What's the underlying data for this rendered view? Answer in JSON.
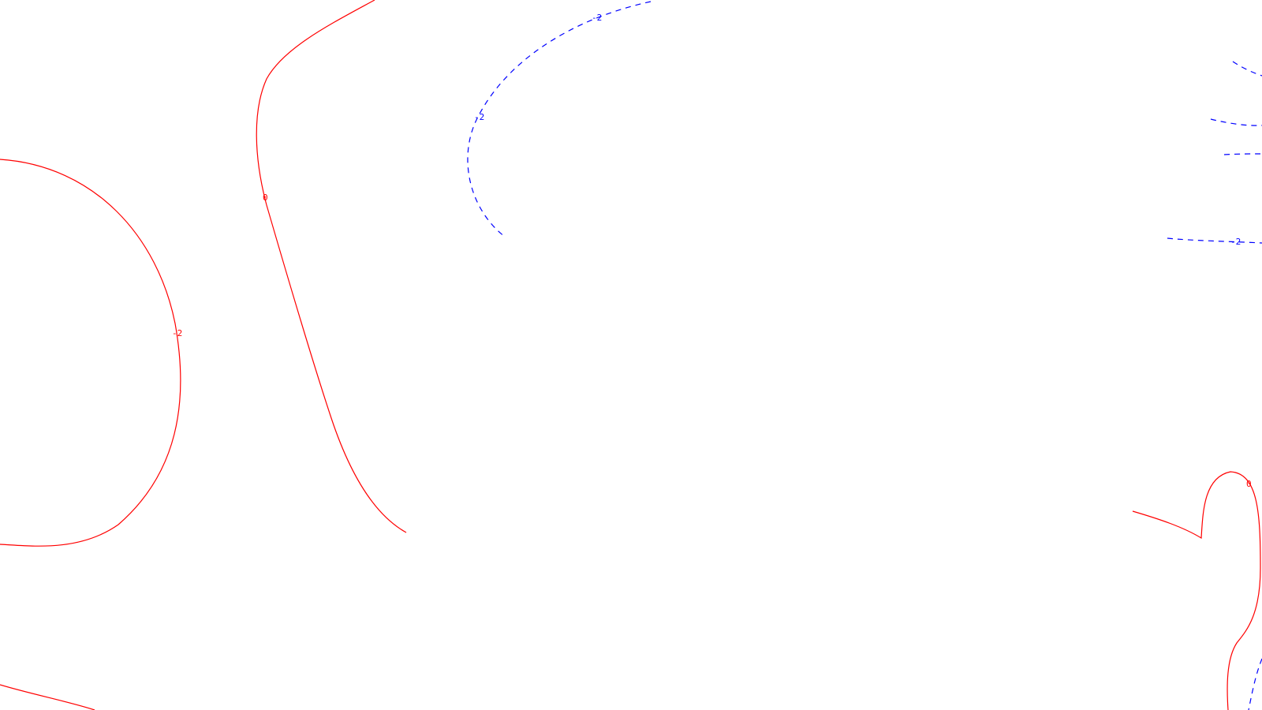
{
  "colors": {
    "background": "#ffffff",
    "positive_contour": "#ff0000",
    "negative_contour": "#0000ff"
  },
  "contours": {
    "red_left_loop_label": "-2",
    "red_center_line_label": "0",
    "red_right_label": "0",
    "blue_upper_label_a": "-2",
    "blue_upper_label_b": "-2",
    "blue_right_label": "-2"
  }
}
